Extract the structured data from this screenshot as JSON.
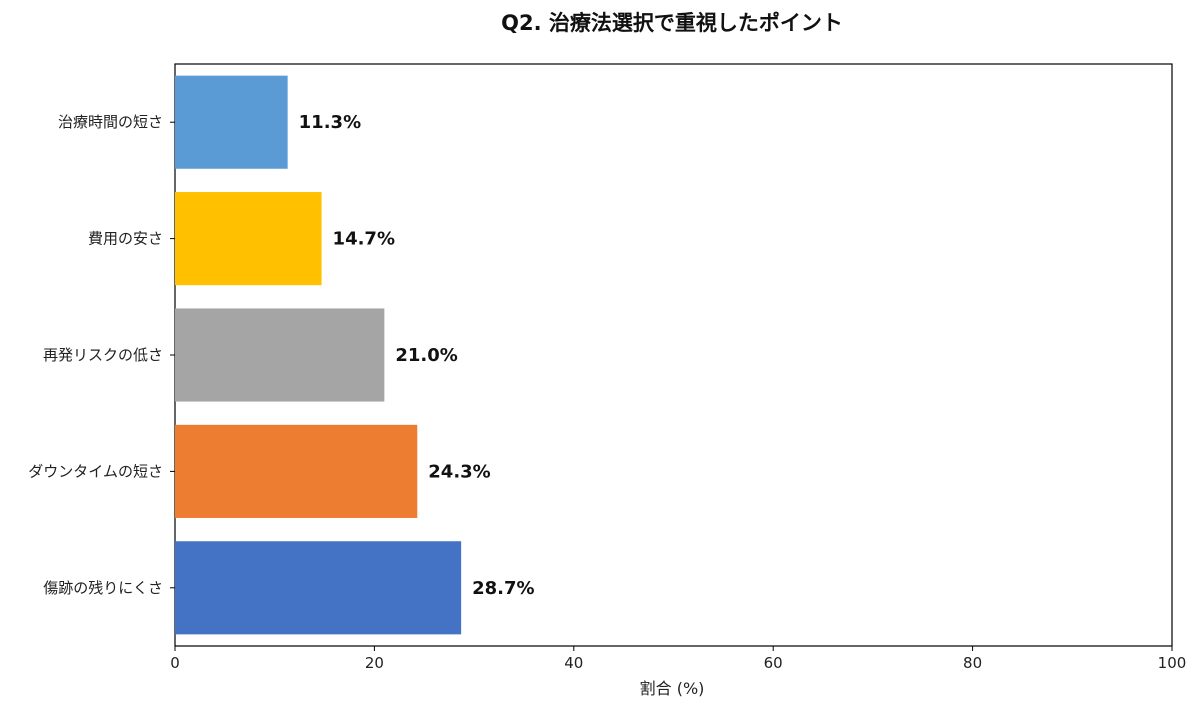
{
  "chart_data": {
    "type": "bar",
    "orientation": "horizontal",
    "title": "Q2. 治療法選択で重視したポイント",
    "xlabel": "割合 (%)",
    "ylabel": "",
    "xlim": [
      0,
      100
    ],
    "xticks": [
      0,
      20,
      40,
      60,
      80,
      100
    ],
    "categories": [
      "治療時間の短さ",
      "費用の安さ",
      "再発リスクの低さ",
      "ダウンタイムの短さ",
      "傷跡の残りにくさ"
    ],
    "values": [
      11.3,
      14.7,
      21.0,
      24.3,
      28.7
    ],
    "value_labels": [
      "11.3%",
      "14.7%",
      "21.0%",
      "24.3%",
      "28.7%"
    ],
    "colors": [
      "#5b9bd5",
      "#ffc000",
      "#a5a5a5",
      "#ed7d31",
      "#4472c4"
    ],
    "grid": false
  }
}
